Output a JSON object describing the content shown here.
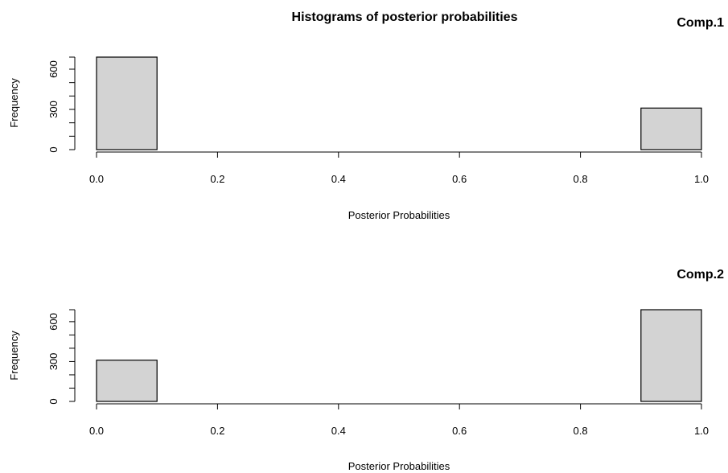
{
  "figure": {
    "title": "Histograms of posterior probabilities"
  },
  "colors": {
    "bar_fill": "#d3d3d3",
    "bar_stroke": "#000000",
    "axis": "#000000",
    "background": "#ffffff"
  },
  "chart_data": [
    {
      "type": "bar",
      "title": "Comp.1",
      "xlabel": "Posterior Probabilities",
      "ylabel": "Frequency",
      "bins": [
        {
          "x0": 0.0,
          "x1": 0.1,
          "count": 690
        },
        {
          "x0": 0.1,
          "x1": 0.2,
          "count": 0
        },
        {
          "x0": 0.2,
          "x1": 0.3,
          "count": 0
        },
        {
          "x0": 0.3,
          "x1": 0.4,
          "count": 0
        },
        {
          "x0": 0.4,
          "x1": 0.5,
          "count": 0
        },
        {
          "x0": 0.5,
          "x1": 0.6,
          "count": 0
        },
        {
          "x0": 0.6,
          "x1": 0.7,
          "count": 0
        },
        {
          "x0": 0.7,
          "x1": 0.8,
          "count": 0
        },
        {
          "x0": 0.8,
          "x1": 0.9,
          "count": 0
        },
        {
          "x0": 0.9,
          "x1": 1.0,
          "count": 310
        }
      ],
      "xlim": [
        0,
        1
      ],
      "ylim": [
        0,
        690
      ],
      "x_ticks": [
        0.0,
        0.2,
        0.4,
        0.6,
        0.8,
        1.0
      ],
      "x_tick_labels": [
        "0.0",
        "0.2",
        "0.4",
        "0.6",
        "0.8",
        "1.0"
      ],
      "y_ticks": [
        0,
        300,
        600
      ],
      "y_tick_labels": [
        "0",
        "300",
        "600"
      ],
      "y_minor_ticks": [
        0,
        100,
        200,
        300,
        400,
        500,
        600,
        690
      ],
      "grid": false,
      "legend": "none"
    },
    {
      "type": "bar",
      "title": "Comp.2",
      "xlabel": "Posterior Probabilities",
      "ylabel": "Frequency",
      "bins": [
        {
          "x0": 0.0,
          "x1": 0.1,
          "count": 310
        },
        {
          "x0": 0.1,
          "x1": 0.2,
          "count": 0
        },
        {
          "x0": 0.2,
          "x1": 0.3,
          "count": 0
        },
        {
          "x0": 0.3,
          "x1": 0.4,
          "count": 0
        },
        {
          "x0": 0.4,
          "x1": 0.5,
          "count": 0
        },
        {
          "x0": 0.5,
          "x1": 0.6,
          "count": 0
        },
        {
          "x0": 0.6,
          "x1": 0.7,
          "count": 0
        },
        {
          "x0": 0.7,
          "x1": 0.8,
          "count": 0
        },
        {
          "x0": 0.8,
          "x1": 0.9,
          "count": 0
        },
        {
          "x0": 0.9,
          "x1": 1.0,
          "count": 690
        }
      ],
      "xlim": [
        0,
        1
      ],
      "ylim": [
        0,
        690
      ],
      "x_ticks": [
        0.0,
        0.2,
        0.4,
        0.6,
        0.8,
        1.0
      ],
      "x_tick_labels": [
        "0.0",
        "0.2",
        "0.4",
        "0.6",
        "0.8",
        "1.0"
      ],
      "y_ticks": [
        0,
        300,
        600
      ],
      "y_tick_labels": [
        "0",
        "300",
        "600"
      ],
      "y_minor_ticks": [
        0,
        100,
        200,
        300,
        400,
        500,
        600,
        690
      ],
      "grid": false,
      "legend": "none"
    }
  ]
}
